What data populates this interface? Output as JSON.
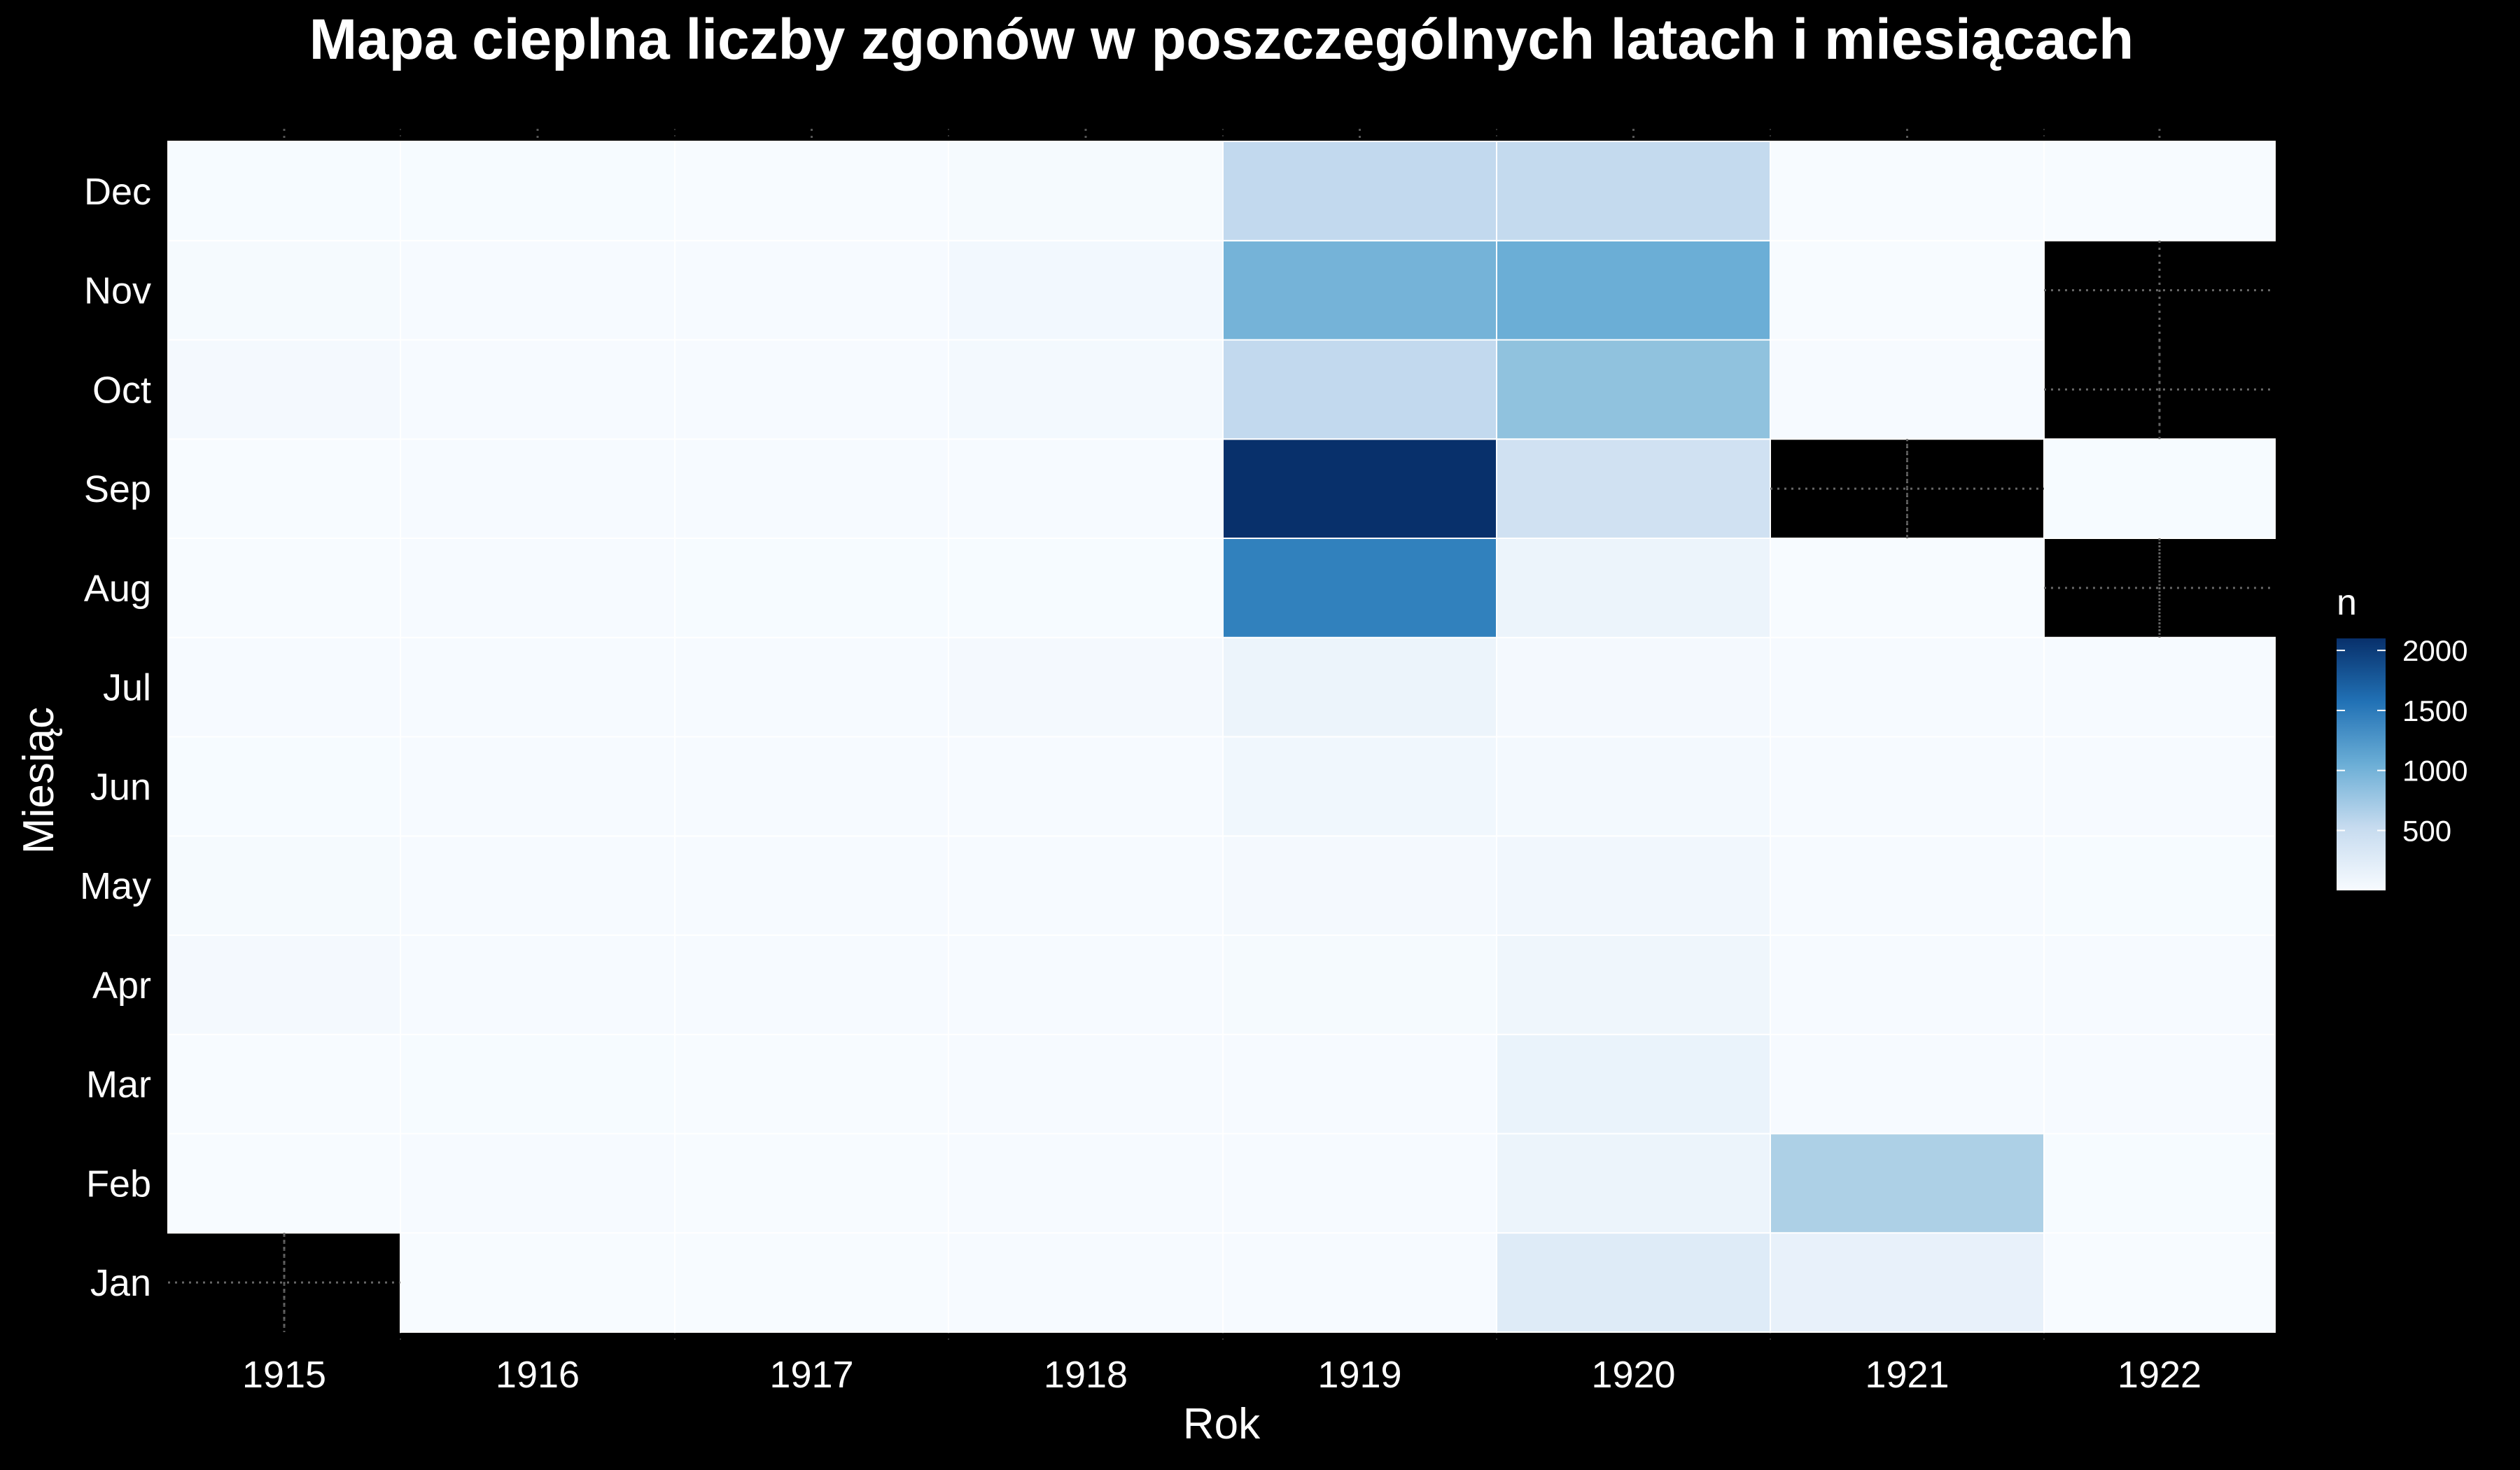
{
  "chart_data": {
    "type": "heatmap",
    "title": "Mapa cieplna liczby zgonów w poszczególnych latach i miesiącach",
    "xlabel": "Rok",
    "ylabel": "Miesiąc",
    "x": [
      "1915",
      "1916",
      "1917",
      "1918",
      "1919",
      "1920",
      "1921",
      "1922"
    ],
    "y": [
      "Jan",
      "Feb",
      "Mar",
      "Apr",
      "May",
      "Jun",
      "Jul",
      "Aug",
      "Sep",
      "Oct",
      "Nov",
      "Dec"
    ],
    "values": [
      [
        null,
        3,
        2,
        30,
        18,
        8,
        12,
        3,
        5,
        28,
        20,
        8
      ],
      [
        6,
        10,
        8,
        12,
        15,
        10,
        10,
        12,
        12,
        10,
        12,
        8
      ],
      [
        3,
        5,
        6,
        10,
        12,
        10,
        12,
        8,
        10,
        12,
        10,
        6
      ],
      [
        10,
        12,
        10,
        15,
        15,
        15,
        30,
        8,
        15,
        40,
        50,
        20
      ],
      [
        10,
        12,
        15,
        25,
        30,
        70,
        120,
        1450,
        2100,
        550,
        1000,
        550
      ],
      [
        260,
        120,
        140,
        90,
        60,
        40,
        30,
        120,
        420,
        860,
        1050,
        540
      ],
      [
        160,
        690,
        10,
        15,
        10,
        15,
        10,
        5,
        null,
        10,
        5,
        5
      ],
      [
        5,
        8,
        10,
        10,
        8,
        10,
        10,
        null,
        8,
        null,
        null,
        6
      ]
    ],
    "colorbar": {
      "label": "n",
      "min": 1,
      "max": 2100,
      "ticks": [
        500,
        1000,
        1500,
        2000
      ],
      "low_color": "#f7fbff",
      "high_color": "#08306b"
    },
    "missing_color": "#000000",
    "grid": true
  }
}
